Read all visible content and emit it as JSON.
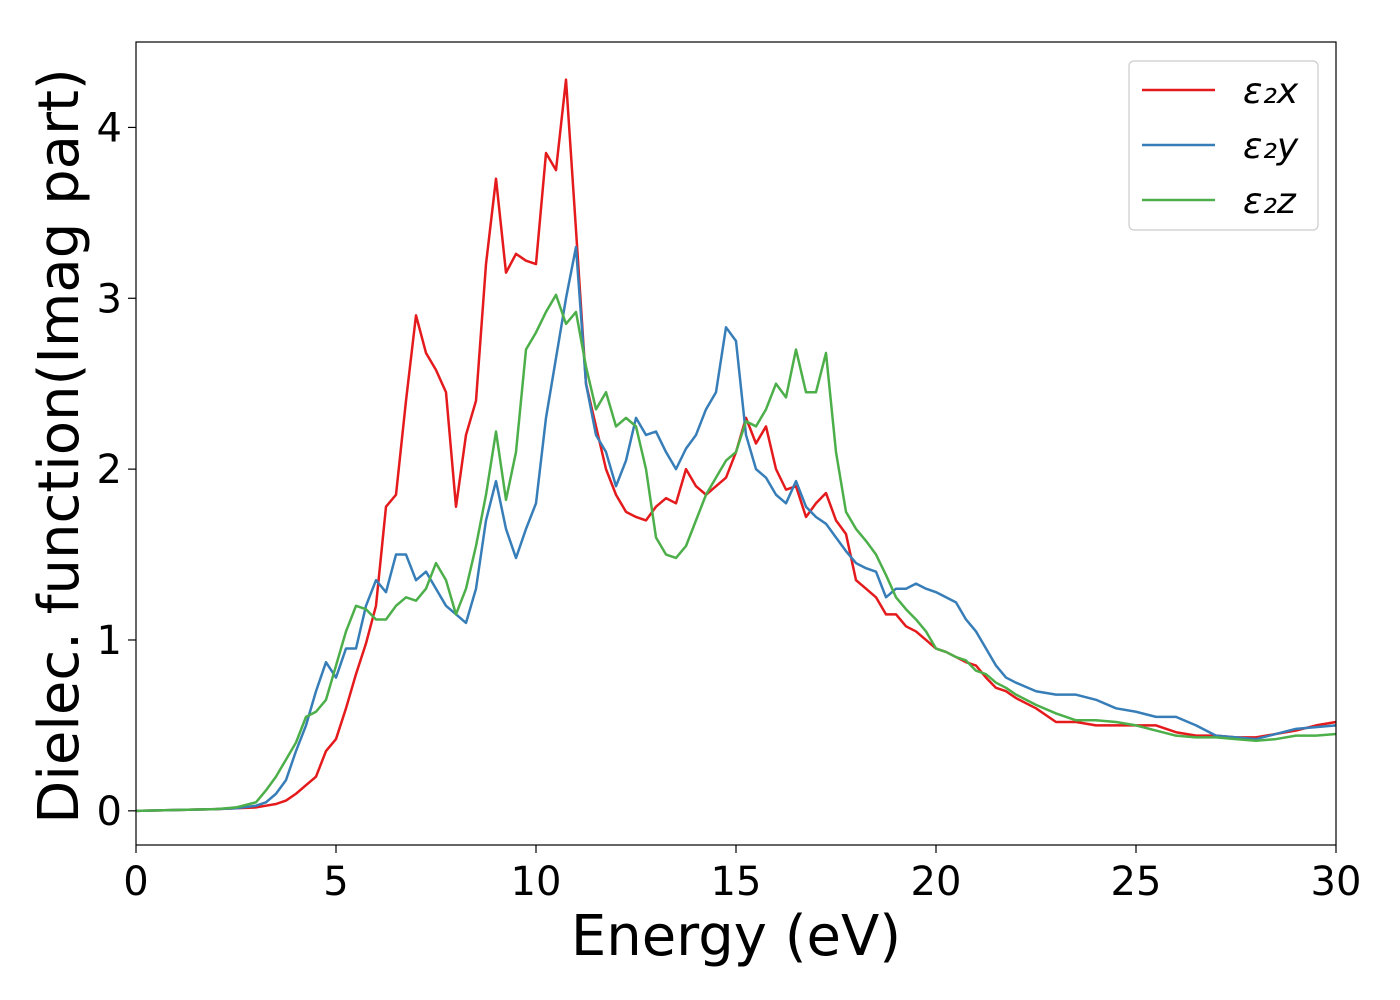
{
  "chart_data": {
    "type": "line",
    "xlabel": "Energy (eV)",
    "ylabel": "Dielec. function(Imag part)",
    "xlim": [
      0,
      30
    ],
    "ylim": [
      -0.2,
      4.5
    ],
    "xticks": [
      0,
      5,
      10,
      15,
      20,
      25,
      30
    ],
    "yticks": [
      0,
      1,
      2,
      3,
      4
    ],
    "legend": "upper right",
    "x": [
      0,
      1,
      2,
      2.5,
      3,
      3.25,
      3.5,
      3.75,
      4,
      4.25,
      4.5,
      4.75,
      5,
      5.25,
      5.5,
      5.75,
      6,
      6.25,
      6.5,
      6.75,
      7,
      7.25,
      7.5,
      7.75,
      8,
      8.25,
      8.5,
      8.75,
      9,
      9.25,
      9.5,
      9.75,
      10,
      10.25,
      10.5,
      10.75,
      11,
      11.25,
      11.5,
      11.75,
      12,
      12.25,
      12.5,
      12.75,
      13,
      13.25,
      13.5,
      13.75,
      14,
      14.25,
      14.5,
      14.75,
      15,
      15.25,
      15.5,
      15.75,
      16,
      16.25,
      16.5,
      16.75,
      17,
      17.25,
      17.5,
      17.75,
      18,
      18.25,
      18.5,
      18.75,
      19,
      19.25,
      19.5,
      19.75,
      20,
      20.25,
      20.5,
      20.75,
      21,
      21.25,
      21.5,
      21.75,
      22,
      22.5,
      23,
      23.5,
      24,
      24.5,
      25,
      25.5,
      26,
      26.5,
      27,
      27.5,
      28,
      28.5,
      29,
      29.5,
      30
    ],
    "series": [
      {
        "name": "ε₂x",
        "color": "#e41a1c",
        "values": [
          0,
          0.005,
          0.01,
          0.015,
          0.02,
          0.03,
          0.04,
          0.06,
          0.1,
          0.15,
          0.2,
          0.35,
          0.42,
          0.6,
          0.8,
          0.98,
          1.2,
          1.78,
          1.85,
          2.4,
          2.9,
          2.68,
          2.58,
          2.45,
          1.78,
          2.2,
          2.4,
          3.2,
          3.7,
          3.15,
          3.26,
          3.22,
          3.2,
          3.85,
          3.75,
          4.28,
          3.4,
          2.5,
          2.25,
          2.0,
          1.85,
          1.75,
          1.72,
          1.7,
          1.78,
          1.83,
          1.8,
          2.0,
          1.9,
          1.85,
          1.9,
          1.95,
          2.1,
          2.3,
          2.15,
          2.25,
          2.0,
          1.88,
          1.9,
          1.72,
          1.8,
          1.86,
          1.7,
          1.62,
          1.35,
          1.3,
          1.25,
          1.15,
          1.15,
          1.08,
          1.05,
          1.0,
          0.95,
          0.93,
          0.9,
          0.87,
          0.85,
          0.78,
          0.72,
          0.7,
          0.66,
          0.6,
          0.52,
          0.52,
          0.5,
          0.5,
          0.5,
          0.5,
          0.46,
          0.44,
          0.44,
          0.43,
          0.43,
          0.45,
          0.47,
          0.5,
          0.52
        ]
      },
      {
        "name": "ε₂y",
        "color": "#377eb8",
        "values": [
          0,
          0.005,
          0.01,
          0.015,
          0.03,
          0.05,
          0.1,
          0.18,
          0.35,
          0.5,
          0.7,
          0.87,
          0.78,
          0.95,
          0.95,
          1.2,
          1.35,
          1.28,
          1.5,
          1.5,
          1.35,
          1.4,
          1.3,
          1.2,
          1.15,
          1.1,
          1.3,
          1.7,
          1.93,
          1.65,
          1.48,
          1.65,
          1.8,
          2.3,
          2.65,
          3.0,
          3.3,
          2.5,
          2.2,
          2.1,
          1.9,
          2.05,
          2.3,
          2.2,
          2.22,
          2.1,
          2.0,
          2.12,
          2.2,
          2.35,
          2.45,
          2.83,
          2.75,
          2.2,
          2.0,
          1.95,
          1.85,
          1.8,
          1.93,
          1.78,
          1.72,
          1.68,
          1.6,
          1.52,
          1.45,
          1.42,
          1.4,
          1.25,
          1.3,
          1.3,
          1.33,
          1.3,
          1.28,
          1.25,
          1.22,
          1.12,
          1.05,
          0.95,
          0.85,
          0.78,
          0.75,
          0.7,
          0.68,
          0.68,
          0.65,
          0.6,
          0.58,
          0.55,
          0.55,
          0.5,
          0.44,
          0.43,
          0.42,
          0.45,
          0.48,
          0.49,
          0.5
        ]
      },
      {
        "name": "ε₂z",
        "color": "#4daf4a",
        "values": [
          0,
          0.005,
          0.01,
          0.02,
          0.05,
          0.12,
          0.2,
          0.3,
          0.4,
          0.55,
          0.58,
          0.65,
          0.85,
          1.05,
          1.2,
          1.18,
          1.12,
          1.12,
          1.2,
          1.25,
          1.23,
          1.3,
          1.45,
          1.35,
          1.15,
          1.3,
          1.55,
          1.85,
          2.22,
          1.82,
          2.1,
          2.7,
          2.8,
          2.92,
          3.02,
          2.85,
          2.92,
          2.6,
          2.35,
          2.45,
          2.25,
          2.3,
          2.25,
          2.0,
          1.6,
          1.5,
          1.48,
          1.55,
          1.7,
          1.85,
          1.95,
          2.05,
          2.1,
          2.28,
          2.25,
          2.35,
          2.5,
          2.42,
          2.7,
          2.45,
          2.45,
          2.68,
          2.1,
          1.75,
          1.65,
          1.58,
          1.5,
          1.38,
          1.25,
          1.18,
          1.12,
          1.05,
          0.95,
          0.93,
          0.9,
          0.88,
          0.82,
          0.8,
          0.75,
          0.72,
          0.68,
          0.62,
          0.57,
          0.53,
          0.53,
          0.52,
          0.5,
          0.47,
          0.44,
          0.43,
          0.43,
          0.42,
          0.41,
          0.42,
          0.44,
          0.44,
          0.45
        ]
      }
    ]
  }
}
